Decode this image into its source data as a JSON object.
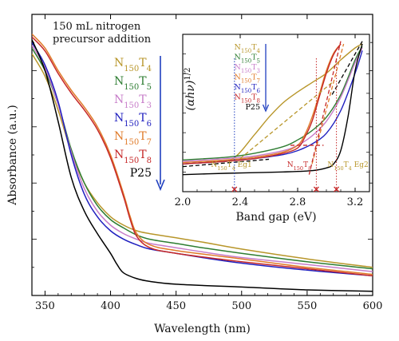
{
  "chart_data": [
    {
      "type": "line",
      "xlabel": "Wavelength (nm)",
      "ylabel": "Absorbance (a.u.)",
      "xlim": [
        340,
        600
      ],
      "ylim": [
        0,
        1
      ],
      "x_ticks": [
        350,
        400,
        450,
        500,
        550,
        600
      ],
      "y_ticks_labeled": false,
      "annotation_lines": [
        "150 mL nitrogen",
        "precursor addition"
      ],
      "legend_placement": "left, beside annotation, with downward arrow",
      "legend": [
        {
          "base": "N",
          "sub1": "150",
          "mid": "T",
          "sub2": "4",
          "color": "#b8962a"
        },
        {
          "base": "N",
          "sub1": "150",
          "mid": "T",
          "sub2": "5",
          "color": "#2e7d32"
        },
        {
          "base": "N",
          "sub1": "150",
          "mid": "T",
          "sub2": "3",
          "color": "#c77dc9"
        },
        {
          "base": "N",
          "sub1": "150",
          "mid": "T",
          "sub2": "6",
          "color": "#1f1fbf"
        },
        {
          "base": "N",
          "sub1": "150",
          "mid": "T",
          "sub2": "7",
          "color": "#e07b2a"
        },
        {
          "base": "N",
          "sub1": "150",
          "mid": "T",
          "sub2": "8",
          "color": "#c62828"
        },
        {
          "label": "P25",
          "color": "#000000"
        }
      ],
      "arrow_color": "#1f3fbf",
      "series": [
        {
          "color": "#b8962a",
          "x": [
            340,
            350,
            360,
            370,
            380,
            390,
            400,
            410,
            420,
            430,
            450,
            470,
            500,
            550,
            600
          ],
          "y": [
            0.86,
            0.78,
            0.66,
            0.51,
            0.4,
            0.33,
            0.28,
            0.25,
            0.23,
            0.22,
            0.205,
            0.19,
            0.165,
            0.13,
            0.1
          ]
        },
        {
          "color": "#2e7d32",
          "x": [
            340,
            350,
            360,
            370,
            380,
            390,
            400,
            410,
            420,
            430,
            450,
            470,
            500,
            550,
            600
          ],
          "y": [
            0.88,
            0.8,
            0.68,
            0.52,
            0.4,
            0.32,
            0.27,
            0.24,
            0.215,
            0.2,
            0.185,
            0.17,
            0.15,
            0.12,
            0.095
          ]
        },
        {
          "color": "#c77dc9",
          "x": [
            340,
            350,
            360,
            370,
            380,
            390,
            400,
            410,
            420,
            430,
            450,
            470,
            500,
            550,
            600
          ],
          "y": [
            0.89,
            0.81,
            0.68,
            0.51,
            0.38,
            0.3,
            0.25,
            0.22,
            0.2,
            0.185,
            0.17,
            0.155,
            0.135,
            0.11,
            0.085
          ]
        },
        {
          "color": "#1f1fbf",
          "x": [
            340,
            350,
            360,
            370,
            380,
            390,
            400,
            410,
            420,
            430,
            450,
            470,
            500,
            550,
            600
          ],
          "y": [
            0.9,
            0.82,
            0.69,
            0.5,
            0.36,
            0.28,
            0.23,
            0.2,
            0.18,
            0.165,
            0.15,
            0.135,
            0.115,
            0.09,
            0.07
          ]
        },
        {
          "color": "#e07b2a",
          "x": [
            340,
            350,
            360,
            370,
            380,
            390,
            400,
            410,
            415,
            420,
            430,
            450,
            500,
            550,
            600
          ],
          "y": [
            0.93,
            0.88,
            0.8,
            0.73,
            0.67,
            0.6,
            0.5,
            0.36,
            0.28,
            0.22,
            0.18,
            0.16,
            0.13,
            0.1,
            0.075
          ]
        },
        {
          "color": "#c62828",
          "x": [
            340,
            350,
            360,
            370,
            380,
            390,
            400,
            410,
            415,
            420,
            430,
            450,
            500,
            550,
            600
          ],
          "y": [
            0.92,
            0.87,
            0.79,
            0.72,
            0.66,
            0.59,
            0.49,
            0.35,
            0.27,
            0.21,
            0.17,
            0.15,
            0.12,
            0.095,
            0.07
          ]
        },
        {
          "color": "#000000",
          "x": [
            340,
            350,
            360,
            370,
            380,
            390,
            400,
            405,
            410,
            420,
            430,
            450,
            500,
            550,
            600
          ],
          "y": [
            0.91,
            0.8,
            0.62,
            0.42,
            0.3,
            0.22,
            0.15,
            0.11,
            0.08,
            0.06,
            0.05,
            0.04,
            0.03,
            0.02,
            0.015
          ]
        }
      ]
    },
    {
      "type": "line",
      "xlabel": "Band gap (eV)",
      "ylabel_parts": {
        "main": "(αhν)",
        "sup": "1/2"
      },
      "xlim": [
        2.0,
        3.3
      ],
      "ylim": [
        0,
        1
      ],
      "x_ticks": [
        2.0,
        2.4,
        2.8,
        3.2
      ],
      "y_ticks_labeled": false,
      "legend": [
        {
          "base": "N",
          "sub1": "150",
          "mid": "T",
          "sub2": "4",
          "color": "#b8962a"
        },
        {
          "base": "N",
          "sub1": "150",
          "mid": "T",
          "sub2": "5",
          "color": "#2e7d32"
        },
        {
          "base": "N",
          "sub1": "150",
          "mid": "T",
          "sub2": "3",
          "color": "#c77dc9"
        },
        {
          "base": "N",
          "sub1": "150",
          "mid": "T",
          "sub2": "7",
          "color": "#e07b2a"
        },
        {
          "base": "N",
          "sub1": "150",
          "mid": "T",
          "sub2": "6",
          "color": "#1f1fbf"
        },
        {
          "base": "N",
          "sub1": "150",
          "mid": "T",
          "sub2": "8",
          "color": "#c62828"
        },
        {
          "label": "P25",
          "color": "#000000"
        }
      ],
      "markers": [
        {
          "x": 2.36,
          "text_parts": {
            "base": "N",
            "sub1": "150",
            "mid": "T",
            "sub2": "4",
            "tail": " Eg1"
          },
          "color": "#b8962a",
          "marker_color": "#1f3fbf"
        },
        {
          "x": 2.93,
          "text_parts": {
            "base": "N",
            "sub1": "150",
            "mid": "T",
            "sub2": "8",
            "tail": ""
          },
          "color": "#c62828",
          "marker_color": "#c62828"
        },
        {
          "x": 3.07,
          "text_parts": {
            "base": "N",
            "sub1": "150",
            "mid": "T",
            "sub2": "4",
            "tail": " Eg2"
          },
          "color": "#b8962a",
          "marker_color": "#c62828"
        }
      ],
      "series": [
        {
          "color": "#b8962a",
          "x": [
            2.0,
            2.2,
            2.35,
            2.5,
            2.6,
            2.7,
            2.8,
            2.9,
            3.0,
            3.1,
            3.2,
            3.25
          ],
          "y": [
            0.1,
            0.115,
            0.14,
            0.32,
            0.45,
            0.56,
            0.64,
            0.71,
            0.78,
            0.88,
            0.97,
            1.0
          ]
        },
        {
          "color": "#2e7d32",
          "x": [
            2.0,
            2.3,
            2.5,
            2.7,
            2.8,
            2.9,
            3.0,
            3.1,
            3.2,
            3.25
          ],
          "y": [
            0.13,
            0.15,
            0.18,
            0.23,
            0.28,
            0.35,
            0.45,
            0.62,
            0.88,
            0.98
          ]
        },
        {
          "color": "#c77dc9",
          "x": [
            2.0,
            2.3,
            2.5,
            2.7,
            2.8,
            2.9,
            3.0,
            3.1,
            3.2,
            3.25
          ],
          "y": [
            0.12,
            0.14,
            0.16,
            0.2,
            0.24,
            0.31,
            0.42,
            0.6,
            0.86,
            0.97
          ]
        },
        {
          "color": "#e07b2a",
          "x": [
            2.0,
            2.3,
            2.5,
            2.7,
            2.8,
            2.85,
            2.9,
            2.95,
            3.0,
            3.05,
            3.1
          ],
          "y": [
            0.11,
            0.13,
            0.15,
            0.19,
            0.24,
            0.32,
            0.45,
            0.62,
            0.8,
            0.93,
            1.0
          ]
        },
        {
          "color": "#1f1fbf",
          "x": [
            2.0,
            2.3,
            2.5,
            2.7,
            2.8,
            2.9,
            3.0,
            3.1,
            3.2,
            3.25
          ],
          "y": [
            0.1,
            0.12,
            0.14,
            0.17,
            0.2,
            0.25,
            0.33,
            0.5,
            0.78,
            0.95
          ]
        },
        {
          "color": "#c62828",
          "x": [
            2.0,
            2.3,
            2.5,
            2.7,
            2.8,
            2.85,
            2.9,
            2.95,
            3.0,
            3.05,
            3.1
          ],
          "y": [
            0.1,
            0.12,
            0.14,
            0.18,
            0.22,
            0.3,
            0.42,
            0.6,
            0.78,
            0.92,
            1.0
          ]
        },
        {
          "color": "#000000",
          "x": [
            2.0,
            2.3,
            2.5,
            2.7,
            2.9,
            3.0,
            3.05,
            3.1,
            3.15,
            3.2,
            3.25
          ],
          "y": [
            0.02,
            0.03,
            0.035,
            0.04,
            0.05,
            0.07,
            0.1,
            0.2,
            0.45,
            0.8,
            1.0
          ]
        }
      ],
      "tangents": [
        {
          "color": "#e07b2a",
          "style": "dashed",
          "x": [
            2.9,
            3.12
          ],
          "y": [
            0.1,
            1.0
          ]
        },
        {
          "color": "#c62828",
          "style": "dashed",
          "x": [
            2.88,
            3.1
          ],
          "y": [
            0.02,
            1.02
          ]
        },
        {
          "color": "#b8962a",
          "style": "dashed",
          "x": [
            2.4,
            3.05
          ],
          "y": [
            0.14,
            0.72
          ]
        },
        {
          "color": "#000000",
          "style": "dashed",
          "x": [
            2.0,
            2.6
          ],
          "y": [
            0.08,
            0.135
          ]
        },
        {
          "color": "#000000",
          "style": "dashed",
          "x": [
            3.04,
            3.25
          ],
          "y": [
            0.62,
            1.02
          ]
        },
        {
          "color": "#c62828",
          "style": "dashed",
          "x": [
            2.75,
            2.98
          ],
          "y": [
            0.24,
            0.24
          ]
        }
      ]
    }
  ]
}
